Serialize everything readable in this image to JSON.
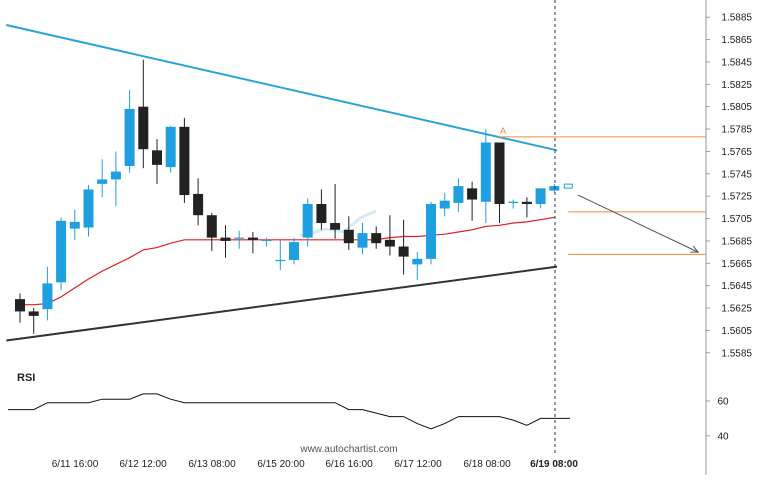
{
  "chart_data": {
    "type": "candlestick",
    "price_axis": {
      "ticks": [
        "1.5885",
        "1.5865",
        "1.5845",
        "1.5825",
        "1.5805",
        "1.5785",
        "1.5765",
        "1.5745",
        "1.5725",
        "1.5705",
        "1.5685",
        "1.5665",
        "1.5645",
        "1.5625",
        "1.5605",
        "1.5585"
      ],
      "range": [
        1.5575,
        1.5895
      ]
    },
    "time_axis": {
      "labels": [
        "6/11 16:00",
        "6/12 12:00",
        "6/13 08:00",
        "6/15 20:00",
        "6/16 16:00",
        "6/17 12:00",
        "6/18 08:00",
        "6/19 08:00"
      ],
      "highlighted_label": "6/19 08:00"
    },
    "candles": [
      {
        "o": 1.5633,
        "h": 1.5638,
        "l": 1.5612,
        "c": 1.5622
      },
      {
        "o": 1.5622,
        "h": 1.5625,
        "l": 1.5602,
        "c": 1.5618
      },
      {
        "o": 1.5624,
        "h": 1.5662,
        "l": 1.5614,
        "c": 1.5647
      },
      {
        "o": 1.5648,
        "h": 1.5706,
        "l": 1.5641,
        "c": 1.5703
      },
      {
        "o": 1.5696,
        "h": 1.5713,
        "l": 1.5686,
        "c": 1.5702
      },
      {
        "o": 1.5697,
        "h": 1.5735,
        "l": 1.5689,
        "c": 1.5731
      },
      {
        "o": 1.5736,
        "h": 1.5758,
        "l": 1.5724,
        "c": 1.574
      },
      {
        "o": 1.574,
        "h": 1.5765,
        "l": 1.5716,
        "c": 1.5747
      },
      {
        "o": 1.5752,
        "h": 1.582,
        "l": 1.5746,
        "c": 1.5803
      },
      {
        "o": 1.5805,
        "h": 1.5847,
        "l": 1.575,
        "c": 1.5767
      },
      {
        "o": 1.5766,
        "h": 1.5776,
        "l": 1.5736,
        "c": 1.5753
      },
      {
        "o": 1.5751,
        "h": 1.5788,
        "l": 1.5746,
        "c": 1.5787
      },
      {
        "o": 1.5787,
        "h": 1.5795,
        "l": 1.5719,
        "c": 1.5726
      },
      {
        "o": 1.5727,
        "h": 1.5741,
        "l": 1.5699,
        "c": 1.5708
      },
      {
        "o": 1.5708,
        "h": 1.571,
        "l": 1.5676,
        "c": 1.5688
      },
      {
        "o": 1.5688,
        "h": 1.5699,
        "l": 1.567,
        "c": 1.5685
      },
      {
        "o": 1.5688,
        "h": 1.5694,
        "l": 1.5678,
        "c": 1.5688
      },
      {
        "o": 1.5688,
        "h": 1.5693,
        "l": 1.5674,
        "c": 1.5686
      },
      {
        "o": 1.5686,
        "h": 1.5688,
        "l": 1.568,
        "c": 1.5686
      },
      {
        "o": 1.5668,
        "h": 1.5686,
        "l": 1.5659,
        "c": 1.5668
      },
      {
        "o": 1.5668,
        "h": 1.5688,
        "l": 1.5664,
        "c": 1.5684
      },
      {
        "o": 1.5688,
        "h": 1.5723,
        "l": 1.568,
        "c": 1.5718
      },
      {
        "o": 1.5718,
        "h": 1.5731,
        "l": 1.5695,
        "c": 1.5701
      },
      {
        "o": 1.5701,
        "h": 1.5736,
        "l": 1.5687,
        "c": 1.5695
      },
      {
        "o": 1.5695,
        "h": 1.5707,
        "l": 1.5677,
        "c": 1.5683
      },
      {
        "o": 1.5679,
        "h": 1.5701,
        "l": 1.5673,
        "c": 1.5692
      },
      {
        "o": 1.5692,
        "h": 1.5698,
        "l": 1.5678,
        "c": 1.5683
      },
      {
        "o": 1.5686,
        "h": 1.5708,
        "l": 1.5672,
        "c": 1.568
      },
      {
        "o": 1.568,
        "h": 1.5704,
        "l": 1.5655,
        "c": 1.5671
      },
      {
        "o": 1.5664,
        "h": 1.5675,
        "l": 1.565,
        "c": 1.5669
      },
      {
        "o": 1.5669,
        "h": 1.572,
        "l": 1.5664,
        "c": 1.5718
      },
      {
        "o": 1.5714,
        "h": 1.5728,
        "l": 1.5707,
        "c": 1.5721
      },
      {
        "o": 1.5719,
        "h": 1.5741,
        "l": 1.5711,
        "c": 1.5734
      },
      {
        "o": 1.5732,
        "h": 1.5738,
        "l": 1.5703,
        "c": 1.5722
      },
      {
        "o": 1.572,
        "h": 1.5785,
        "l": 1.5701,
        "c": 1.5773
      },
      {
        "o": 1.5773,
        "h": 1.5773,
        "l": 1.5701,
        "c": 1.5718
      },
      {
        "o": 1.572,
        "h": 1.5722,
        "l": 1.5714,
        "c": 1.572
      },
      {
        "o": 1.572,
        "h": 1.5724,
        "l": 1.5706,
        "c": 1.5718
      },
      {
        "o": 1.5718,
        "h": 1.5732,
        "l": 1.5714,
        "c": 1.5732
      },
      {
        "o": 1.573,
        "h": 1.5736,
        "l": 1.5728,
        "c": 1.5734
      }
    ],
    "moving_average": {
      "color": "#e02020",
      "values": [
        1.5628,
        1.5628,
        1.5629,
        1.5635,
        1.5643,
        1.5651,
        1.5658,
        1.5664,
        1.567,
        1.5677,
        1.5679,
        1.5683,
        1.5686,
        1.5686,
        1.5686,
        1.5686,
        1.5686,
        1.5686,
        1.5686,
        1.5686,
        1.5686,
        1.5686,
        1.5686,
        1.5686,
        1.5686,
        1.5686,
        1.5686,
        1.5688,
        1.5689,
        1.5689,
        1.569,
        1.5691,
        1.5693,
        1.5695,
        1.5698,
        1.5699,
        1.5701,
        1.5702,
        1.5704,
        1.5706
      ]
    },
    "resistance_line": {
      "color": "#29a3d8",
      "from": {
        "bar": -1,
        "price": 1.5878
      },
      "to": {
        "bar": 39.2,
        "price": 1.5766
      }
    },
    "support_line": {
      "color": "#333333",
      "from": {
        "bar": -1,
        "price": 1.5596
      },
      "to": {
        "bar": 39.2,
        "price": 1.5662
      }
    },
    "levels": [
      {
        "price": 1.5778,
        "color": "#f08a3c",
        "label": "A"
      },
      {
        "price": 1.5711,
        "color": "#f08a3c",
        "label": ""
      },
      {
        "price": 1.5673,
        "color": "#f08a3c",
        "label": ""
      }
    ],
    "forecast_arrow": {
      "color": "#555555",
      "from": {
        "bar": 40,
        "price": 1.5726
      },
      "to": {
        "bar": 49.5,
        "price": 1.5675
      }
    },
    "rsi": {
      "title": "RSI",
      "ticks": [
        "60",
        "40"
      ],
      "range": [
        33,
        72
      ],
      "values": [
        55,
        55,
        59,
        59,
        59,
        59,
        61,
        61,
        61,
        64,
        64,
        61,
        59,
        59,
        59,
        59,
        59,
        59,
        59,
        59,
        59,
        59,
        59,
        59,
        55,
        55,
        53,
        51,
        51,
        47,
        44,
        47,
        51,
        51,
        51,
        51,
        49,
        46,
        50,
        50
      ]
    },
    "watermark": "www.autochartist.com"
  }
}
